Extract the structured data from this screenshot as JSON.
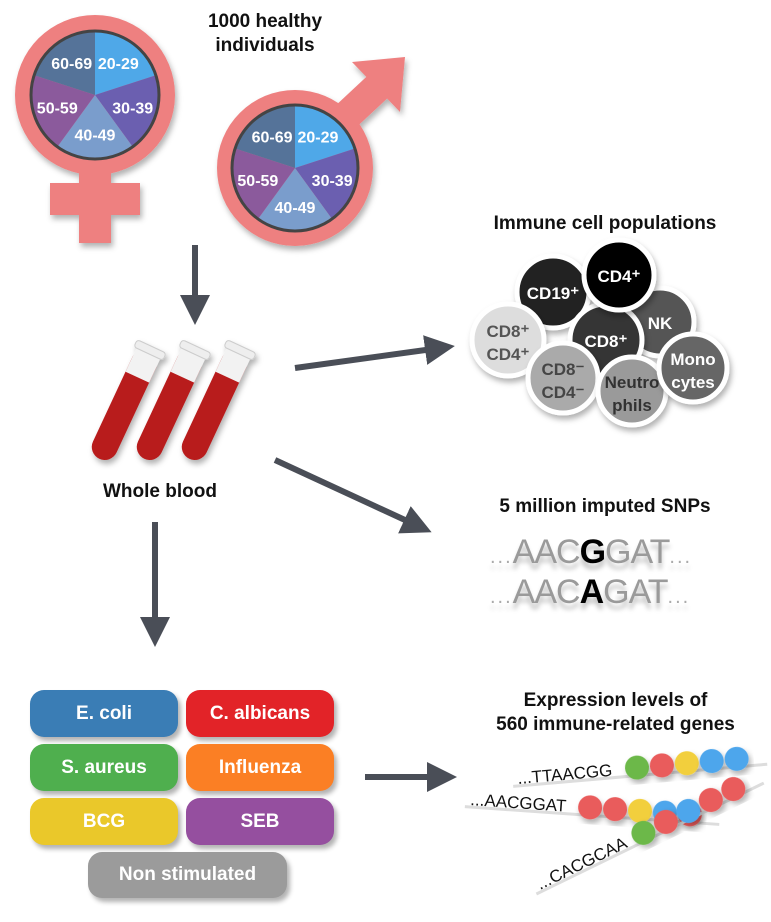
{
  "cohort": {
    "title_line1": "1000 healthy",
    "title_line2": "individuals",
    "age_groups": [
      "20-29",
      "30-39",
      "40-49",
      "50-59",
      "60-69"
    ],
    "age_colors": [
      "#4fa8e8",
      "#6b5fb0",
      "#7a9dcc",
      "#8b5a9c",
      "#557399"
    ],
    "symbol_color": "#ee8080"
  },
  "blood": {
    "label": "Whole blood"
  },
  "immune_cells": {
    "title": "Immune cell populations",
    "cells": [
      {
        "id": "nk",
        "label1": "NK",
        "label2": "",
        "color": "#555555",
        "text": "#ffffff"
      },
      {
        "id": "cd19",
        "label1": "CD19⁺",
        "label2": "",
        "color": "#222222",
        "text": "#ffffff"
      },
      {
        "id": "cd8",
        "label1": "CD8⁺",
        "label2": "",
        "color": "#353535",
        "text": "#ffffff"
      },
      {
        "id": "cd4",
        "label1": "CD4⁺",
        "label2": "",
        "color": "#000000",
        "text": "#ffffff"
      },
      {
        "id": "cd8cd4",
        "label1": "CD8⁺",
        "label2": "CD4⁺",
        "color": "#dddddd",
        "text": "#555555"
      },
      {
        "id": "cd8neg",
        "label1": "CD8⁻",
        "label2": "CD4⁻",
        "color": "#aaaaaa",
        "text": "#444444"
      },
      {
        "id": "neutro",
        "label1": "Neutro",
        "label2": "phils",
        "color": "#9a9a9a",
        "text": "#333333"
      },
      {
        "id": "mono",
        "label1": "Mono",
        "label2": "cytes",
        "color": "#666666",
        "text": "#ffffff"
      }
    ]
  },
  "snps": {
    "title": "5 million imputed SNPs",
    "seq1": {
      "prefix": "AAC",
      "variant": "G",
      "suffix": "GAT"
    },
    "seq2": {
      "prefix": "AAC",
      "variant": "A",
      "suffix": "GAT"
    },
    "ellipsis": "..."
  },
  "stimuli": [
    {
      "label": "E. coli",
      "color": "#3a7db5"
    },
    {
      "label": "C. albicans",
      "color": "#e22328"
    },
    {
      "label": "S. aureus",
      "color": "#4faf4e"
    },
    {
      "label": "Influenza",
      "color": "#fb7f24"
    },
    {
      "label": "BCG",
      "color": "#eac82a"
    },
    {
      "label": "SEB",
      "color": "#954f9f"
    },
    {
      "label": "Non stimulated",
      "color": "#9b9b9b"
    }
  ],
  "expression": {
    "title_line1": "Expression levels of",
    "title_line2": "560 immune-related genes",
    "rows": [
      {
        "seq": "...TTAACGG",
        "dots": [
          "#6cb84a",
          "#e95b5b",
          "#f2cf3c",
          "#4ea6ec",
          "#4ea6ec"
        ]
      },
      {
        "seq": "...AACGGAT",
        "dots": [
          "#e95b5b",
          "#e95b5b",
          "#f2cf3c",
          "#4ea6ec",
          "#e95b5b"
        ]
      },
      {
        "seq": "...CACGCAA",
        "dots": [
          "#6cb84a",
          "#e95b5b",
          "#4ea6ec",
          "#e95b5b",
          "#e95b5b"
        ]
      }
    ]
  },
  "arrow_color": "#4a4e57"
}
